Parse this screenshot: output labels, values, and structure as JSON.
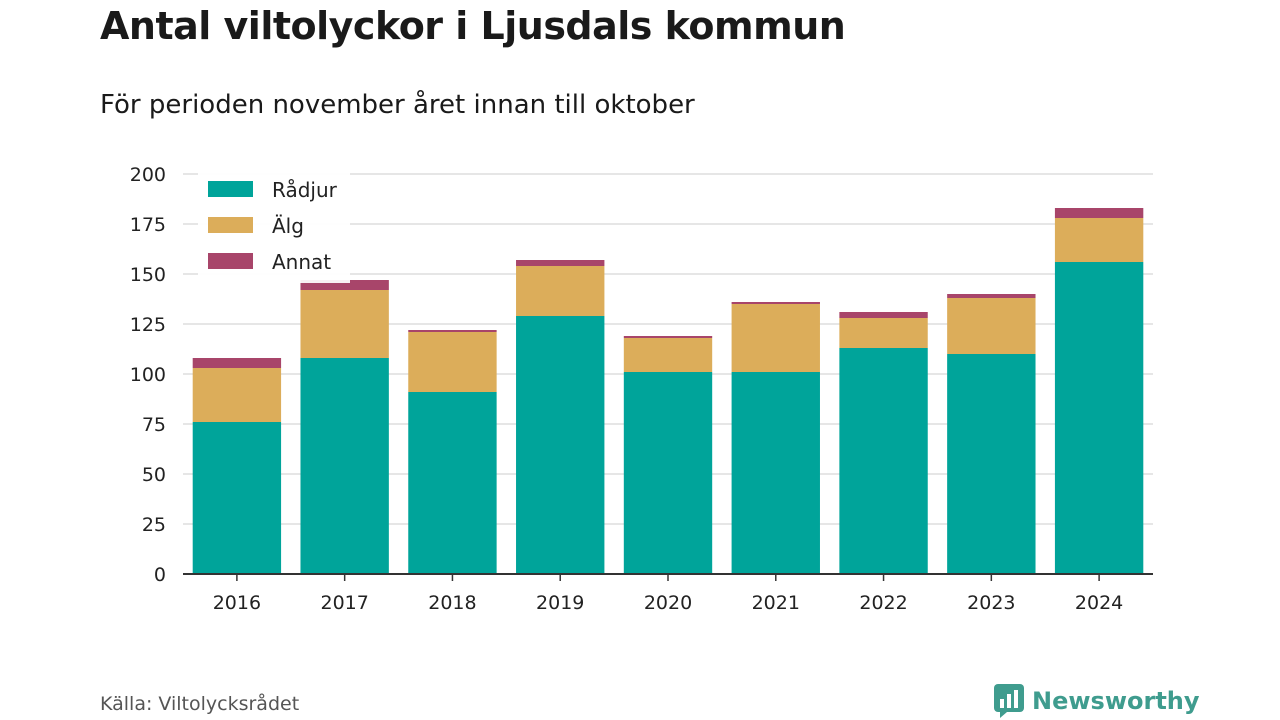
{
  "title": "Antal viltolyckor i Ljusdals kommun",
  "subtitle": "För perioden november året innan till oktober",
  "source": "Källa: Viltolycksrådet",
  "brand": {
    "name": "Newsworthy",
    "icon": "newsworthy-logo-icon",
    "color": "#3f9c8e"
  },
  "chart_data": {
    "type": "bar",
    "stacked": true,
    "categories": [
      "2016",
      "2017",
      "2018",
      "2019",
      "2020",
      "2021",
      "2022",
      "2023",
      "2024"
    ],
    "series": [
      {
        "name": "Rådjur",
        "color": "#00a49a",
        "values": [
          76,
          108,
          91,
          129,
          101,
          101,
          113,
          110,
          156
        ]
      },
      {
        "name": "Älg",
        "color": "#dcad5a",
        "values": [
          27,
          34,
          30,
          25,
          17,
          34,
          15,
          28,
          22
        ]
      },
      {
        "name": "Annat",
        "color": "#a8456a",
        "values": [
          5,
          5,
          1,
          3,
          1,
          1,
          3,
          2,
          5
        ]
      }
    ],
    "ylim": [
      0,
      200
    ],
    "yticks": [
      0,
      25,
      50,
      75,
      100,
      125,
      150,
      175,
      200
    ],
    "xlabel": "",
    "ylabel": "",
    "grid": true,
    "legend_position": "top-left"
  }
}
